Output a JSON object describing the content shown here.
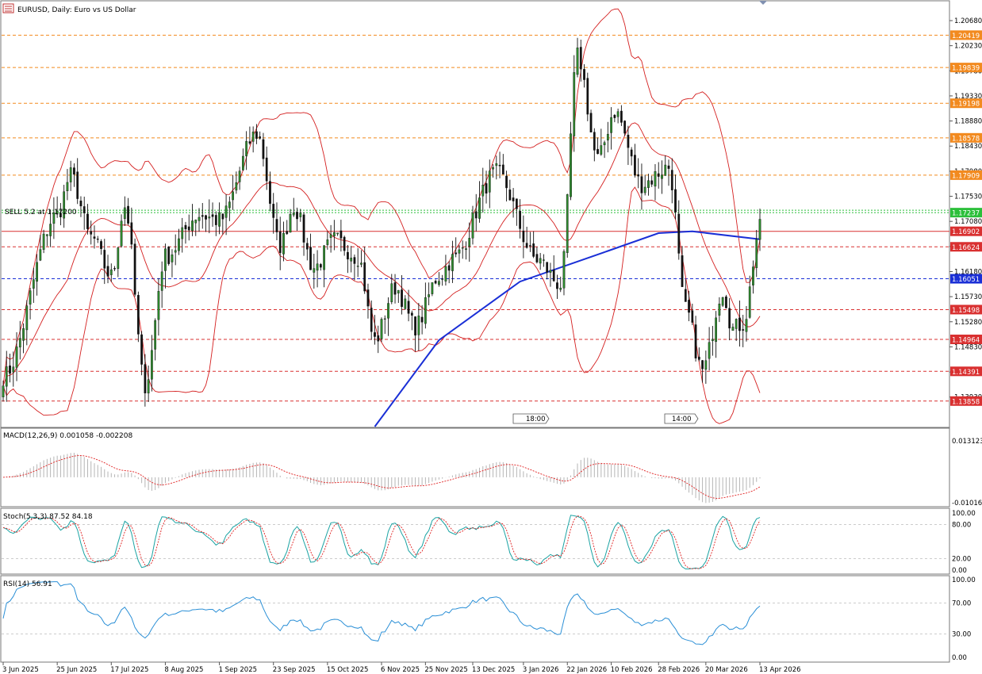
{
  "window": {
    "title": "EURUSD, Daily: Euro vs US Dollar",
    "sell_label": "SELL 5.2 at 1.17200"
  },
  "colors": {
    "bull": "#2e8b2e",
    "bear": "#111111",
    "bollinger": "#d41f1f",
    "ma": "#1a2fd6",
    "orange_level": "#f28a1f",
    "red_level": "#d93030",
    "green_level": "#2bbf3a",
    "blue_level": "#1a2fd6",
    "macd_hist": "#b5b5b5",
    "macd_signal": "#e02020",
    "stoch_main": "#1aa3a3",
    "stoch_signal": "#e02020",
    "rsi": "#2a8fd6"
  },
  "chart_data": [
    {
      "type": "candlestick",
      "title": "EURUSD, Daily: Euro vs US Dollar",
      "symbol": "EURUSD",
      "timeframe": "Daily",
      "ylim": [
        1.134,
        1.2095
      ],
      "y_ticks": [
        "1.20680",
        "1.20230",
        "1.19780",
        "1.19330",
        "1.18880",
        "1.18430",
        "1.17980",
        "1.17530",
        "1.17080",
        "1.16630",
        "1.16180",
        "1.15730",
        "1.15280",
        "1.14830",
        "1.14380",
        "1.13930"
      ],
      "x_labels": [
        "3 Jun 2025",
        "25 Jun 2025",
        "17 Jul 2025",
        "8 Aug 2025",
        "1 Sep 2025",
        "23 Sep 2025",
        "15 Oct 2025",
        "6 Nov 2025",
        "25 Nov 2025",
        "13 Dec 2025",
        "3 Jan 2026",
        "22 Jan 2026",
        "10 Feb 2026",
        "28 Feb 2026",
        "20 Mar 2026",
        "13 Apr 2026"
      ],
      "price_levels": [
        {
          "value": 1.20419,
          "label": "1.20419",
          "kind": "orange"
        },
        {
          "value": 1.19839,
          "label": "1.19839",
          "kind": "orange"
        },
        {
          "value": 1.19198,
          "label": "1.19198",
          "kind": "orange"
        },
        {
          "value": 1.18578,
          "label": "1.18578",
          "kind": "orange"
        },
        {
          "value": 1.17909,
          "label": "1.17909",
          "kind": "orange"
        },
        {
          "value": 1.17237,
          "label": "1.17237",
          "kind": "green"
        },
        {
          "value": 1.16902,
          "label": "1.16902",
          "kind": "red_solid"
        },
        {
          "value": 1.16624,
          "label": "1.16624",
          "kind": "red"
        },
        {
          "value": 1.16051,
          "label": "1.16051",
          "kind": "blue"
        },
        {
          "value": 1.15498,
          "label": "1.15498",
          "kind": "red"
        },
        {
          "value": 1.14964,
          "label": "1.14964",
          "kind": "red"
        },
        {
          "value": 1.14391,
          "label": "1.14391",
          "kind": "red"
        },
        {
          "value": 1.13858,
          "label": "1.13858",
          "kind": "red"
        }
      ],
      "trade": {
        "side": "SELL",
        "volume": 5.2,
        "price": 1.172
      },
      "session_markers": [
        "18:00",
        "14:00"
      ],
      "price_anchors": [
        {
          "date": "2025-06-03",
          "close": 1.143
        },
        {
          "date": "2025-06-25",
          "close": 1.172
        },
        {
          "date": "2025-07-01",
          "close": 1.179
        },
        {
          "date": "2025-07-09",
          "close": 1.168
        },
        {
          "date": "2025-07-17",
          "close": 1.161
        },
        {
          "date": "2025-07-23",
          "close": 1.1735
        },
        {
          "date": "2025-07-31",
          "close": 1.1415
        },
        {
          "date": "2025-08-08",
          "close": 1.1645
        },
        {
          "date": "2025-08-22",
          "close": 1.172
        },
        {
          "date": "2025-09-01",
          "close": 1.171
        },
        {
          "date": "2025-09-16",
          "close": 1.1865
        },
        {
          "date": "2025-09-25",
          "close": 1.1665
        },
        {
          "date": "2025-10-01",
          "close": 1.1735
        },
        {
          "date": "2025-10-09",
          "close": 1.1625
        },
        {
          "date": "2025-10-17",
          "close": 1.1675
        },
        {
          "date": "2025-10-28",
          "close": 1.1645
        },
        {
          "date": "2025-11-04",
          "close": 1.1495
        },
        {
          "date": "2025-11-12",
          "close": 1.159
        },
        {
          "date": "2025-11-20",
          "close": 1.152
        },
        {
          "date": "2025-12-01",
          "close": 1.161
        },
        {
          "date": "2025-12-05",
          "close": 1.164
        },
        {
          "date": "2025-12-24",
          "close": 1.1795
        },
        {
          "date": "2026-01-09",
          "close": 1.164
        },
        {
          "date": "2026-01-20",
          "close": 1.1595
        },
        {
          "date": "2026-01-27",
          "close": 1.2005
        },
        {
          "date": "2026-02-04",
          "close": 1.182
        },
        {
          "date": "2026-02-11",
          "close": 1.1905
        },
        {
          "date": "2026-02-23",
          "close": 1.1775
        },
        {
          "date": "2026-03-05",
          "close": 1.1805
        },
        {
          "date": "2026-03-12",
          "close": 1.155
        },
        {
          "date": "2026-03-19",
          "close": 1.144
        },
        {
          "date": "2026-03-27",
          "close": 1.1585
        },
        {
          "date": "2026-04-01",
          "close": 1.1515
        },
        {
          "date": "2026-04-06",
          "close": 1.1525
        },
        {
          "date": "2026-04-13",
          "close": 1.1695
        }
      ],
      "bollinger_period": 20,
      "ma200_anchors": [
        {
          "date": "2025-11-04",
          "value": 1.134
        },
        {
          "date": "2025-12-01",
          "value": 1.1495
        },
        {
          "date": "2026-01-02",
          "value": 1.16
        },
        {
          "date": "2026-02-09",
          "value": 1.1655
        },
        {
          "date": "2026-03-02",
          "value": 1.1687
        },
        {
          "date": "2026-03-16",
          "value": 1.169
        },
        {
          "date": "2026-04-13",
          "value": 1.1676
        }
      ]
    },
    {
      "type": "histogram",
      "title": "MACD(12,26,9) 0.001058 -0.002208",
      "y_ticks": [
        "0.013123",
        "-0.01016"
      ],
      "ylim": [
        -0.0103,
        0.0131
      ],
      "main_value": 0.001058,
      "signal_value": -0.002208
    },
    {
      "type": "line",
      "title": "Stoch(5,3,3) 87.52 84.18",
      "y_ticks": [
        "100.00",
        "80.00",
        "20.00",
        "0.00"
      ],
      "ylim": [
        0,
        100
      ],
      "main_value": 87.52,
      "signal_value": 84.18
    },
    {
      "type": "line",
      "title": "RSI(14) 56.91",
      "y_ticks": [
        "100.00",
        "70.00",
        "30.00",
        "0.00"
      ],
      "ylim": [
        0,
        100
      ],
      "value": 56.91
    }
  ]
}
